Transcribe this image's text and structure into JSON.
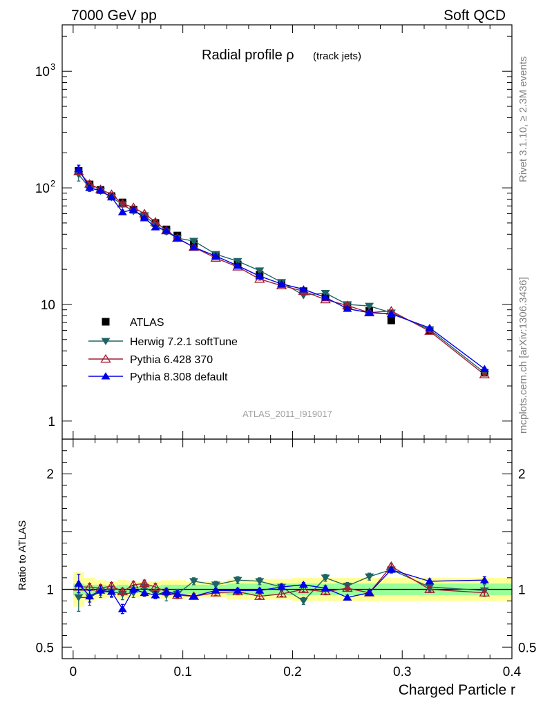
{
  "header": {
    "left": "7000 GeV pp",
    "right": "Soft QCD"
  },
  "side_labels": {
    "rivet": "Rivet 3.1.10, ≥ 2.3M events",
    "mcplots": "mcplots.cern.ch [arXiv:1306.3436]"
  },
  "chart_data": {
    "type": "line",
    "title_main": "Radial profile ρ",
    "title_sub": "(track jets)",
    "analysis_id": "ATLAS_2011_I919017",
    "xlabel": "Charged Particle r",
    "ylabel_ratio": "Ratio to ATLAS",
    "xlim": [
      -0.01,
      0.4
    ],
    "ylim_main": [
      0.7,
      2500
    ],
    "ylim_ratio": [
      0.4,
      2.3
    ],
    "y_scale_main": "log",
    "x_ticks": [
      {
        "v": 0,
        "label": "0"
      },
      {
        "v": 0.1,
        "label": "0.1"
      },
      {
        "v": 0.2,
        "label": "0.2"
      },
      {
        "v": 0.3,
        "label": "0.3"
      },
      {
        "v": 0.4,
        "label": "0.4"
      }
    ],
    "main_y_ticks": [
      {
        "v": 1,
        "label": "1"
      },
      {
        "v": 10,
        "label": "10"
      },
      {
        "v": 100,
        "label": "10",
        "exp": "2"
      },
      {
        "v": 1000,
        "label": "10",
        "exp": "3"
      }
    ],
    "ratio_y_ticks": [
      {
        "v": 0.5,
        "label": "0.5"
      },
      {
        "v": 1,
        "label": "1"
      },
      {
        "v": 2,
        "label": "2"
      }
    ],
    "legend_position": "bottom-left",
    "x": [
      0.005,
      0.015,
      0.025,
      0.035,
      0.045,
      0.055,
      0.065,
      0.075,
      0.085,
      0.095,
      0.11,
      0.13,
      0.15,
      0.17,
      0.19,
      0.21,
      0.23,
      0.25,
      0.27,
      0.29,
      0.325,
      0.375
    ],
    "data_band": {
      "y1": [
        0.85,
        0.9,
        0.92,
        0.93,
        0.92,
        0.93,
        0.93,
        0.93,
        0.92,
        0.92,
        0.93,
        0.93,
        0.91,
        0.91,
        0.91,
        0.9,
        0.9,
        0.9,
        0.9,
        0.9,
        0.9,
        0.9
      ],
      "y2": [
        1.15,
        1.1,
        1.08,
        1.07,
        1.08,
        1.07,
        1.07,
        1.07,
        1.08,
        1.08,
        1.07,
        1.07,
        1.09,
        1.09,
        1.09,
        1.1,
        1.1,
        1.1,
        1.1,
        1.1,
        1.1,
        1.1
      ],
      "g1": [
        0.95,
        0.96,
        0.96,
        0.97,
        0.96,
        0.97,
        0.97,
        0.97,
        0.96,
        0.96,
        0.96,
        0.96,
        0.95,
        0.95,
        0.95,
        0.95,
        0.95,
        0.95,
        0.95,
        0.95,
        0.95,
        0.95
      ],
      "g2": [
        1.05,
        1.04,
        1.04,
        1.03,
        1.04,
        1.03,
        1.03,
        1.03,
        1.04,
        1.04,
        1.04,
        1.04,
        1.05,
        1.05,
        1.05,
        1.05,
        1.05,
        1.05,
        1.05,
        1.05,
        1.05,
        1.05
      ]
    },
    "series": [
      {
        "name": "ATLAS",
        "color": "#000000",
        "marker": "square",
        "values": [
          140,
          107,
          96,
          85,
          75,
          65,
          57,
          50,
          44,
          39,
          33,
          26,
          22,
          18,
          15,
          13,
          11.5,
          9.7,
          8.8,
          7.3,
          6.0,
          2.6
        ]
      },
      {
        "name": "Herwig 7.2.1 softTune",
        "color": "#1e6464",
        "marker": "triangle-down",
        "values": [
          130,
          100,
          94,
          83,
          72,
          63,
          58,
          48,
          42,
          37,
          35,
          27,
          23.5,
          19.5,
          15.5,
          12,
          12.5,
          10,
          9.7,
          8.5,
          6.1,
          2.6
        ],
        "ratio": [
          0.93,
          0.93,
          0.98,
          0.98,
          0.96,
          0.97,
          1.02,
          0.96,
          0.95,
          0.96,
          1.07,
          1.04,
          1.08,
          1.07,
          1.02,
          0.9,
          1.1,
          1.03,
          1.11,
          1.17,
          1.02,
          0.99
        ],
        "ratio_err": [
          0.12,
          0.07,
          0.05,
          0.05,
          0.05,
          0.04,
          0.04,
          0.04,
          0.05,
          0.04,
          0.03,
          0.03,
          0.03,
          0.03,
          0.03,
          0.03,
          0.03,
          0.03,
          0.03,
          0.03,
          0.03,
          0.05
        ]
      },
      {
        "name": "Pythia 6.428 370",
        "color": "#a01e32",
        "marker": "triangle-open",
        "values": [
          138,
          108,
          97,
          88,
          73,
          68,
          60,
          51,
          43,
          37,
          31,
          25,
          21,
          16.5,
          14.5,
          13,
          11,
          9.8,
          8.5,
          8.8,
          5.9,
          2.5
        ],
        "ratio": [
          1.02,
          1.02,
          1.01,
          1.03,
          0.98,
          1.04,
          1.05,
          1.02,
          0.98,
          0.95,
          0.94,
          0.97,
          0.98,
          0.94,
          0.96,
          1.0,
          0.98,
          1.01,
          0.97,
          1.2,
          1.0,
          0.97
        ],
        "ratio_err": [
          0.05,
          0.03,
          0.03,
          0.03,
          0.03,
          0.03,
          0.03,
          0.03,
          0.03,
          0.03,
          0.02,
          0.02,
          0.02,
          0.02,
          0.02,
          0.02,
          0.02,
          0.02,
          0.02,
          0.02,
          0.02,
          0.03
        ]
      },
      {
        "name": "Pythia 8.308 default",
        "color": "#0000e6",
        "marker": "triangle-up",
        "values": [
          145,
          100,
          95,
          83,
          62,
          65,
          55,
          46,
          43,
          37,
          31,
          26,
          21.5,
          17.5,
          15,
          13.5,
          11.5,
          9.2,
          8.5,
          8.3,
          6.3,
          2.8
        ],
        "ratio": [
          1.05,
          0.94,
          0.99,
          0.98,
          0.83,
          1.0,
          0.97,
          0.95,
          0.98,
          0.96,
          0.94,
          0.99,
          0.99,
          0.99,
          1.02,
          1.04,
          1.01,
          0.93,
          0.97,
          1.17,
          1.07,
          1.08
        ],
        "ratio_err": [
          0.08,
          0.05,
          0.04,
          0.04,
          0.04,
          0.03,
          0.03,
          0.03,
          0.03,
          0.03,
          0.02,
          0.02,
          0.02,
          0.02,
          0.02,
          0.02,
          0.02,
          0.02,
          0.02,
          0.02,
          0.02,
          0.03
        ]
      }
    ]
  }
}
